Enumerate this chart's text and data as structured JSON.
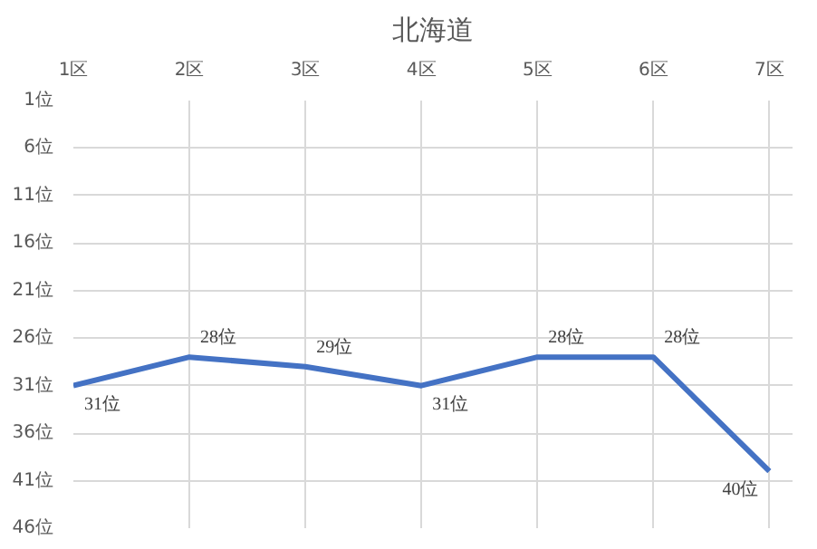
{
  "chart_data": {
    "type": "line",
    "title": "北海道",
    "categories": [
      "1区",
      "2区",
      "3区",
      "4区",
      "5区",
      "6区",
      "7区"
    ],
    "series": [
      {
        "color": "#4472c4",
        "values": [
          31,
          28,
          29,
          31,
          28,
          28,
          40
        ],
        "value_labels": [
          "31位",
          "28位",
          "29位",
          "31位",
          "28位",
          "28位",
          "40位"
        ]
      }
    ],
    "ylim": [
      46,
      1
    ],
    "yticks": [
      {
        "value": 1,
        "label": "1位"
      },
      {
        "value": 6,
        "label": "6位"
      },
      {
        "value": 11,
        "label": "11位"
      },
      {
        "value": 16,
        "label": "16位"
      },
      {
        "value": 21,
        "label": "21位"
      },
      {
        "value": 26,
        "label": "26位"
      },
      {
        "value": 31,
        "label": "31位"
      },
      {
        "value": 36,
        "label": "36位"
      },
      {
        "value": 41,
        "label": "41位"
      },
      {
        "value": 46,
        "label": "46位"
      }
    ],
    "grid": true,
    "marker": "none",
    "line_style": "solid"
  }
}
